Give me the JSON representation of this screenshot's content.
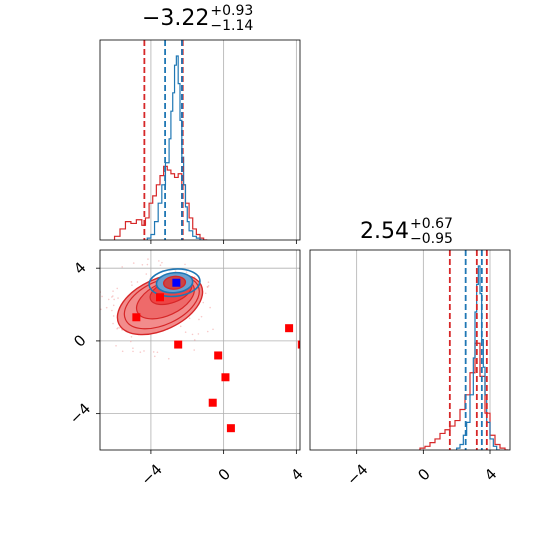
{
  "chart_data": [
    {
      "type": "histogram",
      "panel": "top-left",
      "title_value": "−3.22",
      "title_plus": "+0.93",
      "title_minus": "−1.14",
      "xlim": [
        -6.8,
        4.2
      ],
      "grid": true,
      "red_hist": {
        "color": "#d62728",
        "bins_x": [
          -6.0,
          -5.7,
          -5.4,
          -5.1,
          -4.8,
          -4.5,
          -4.3,
          -4.1,
          -3.9,
          -3.7,
          -3.5,
          -3.3,
          -3.1,
          -2.9,
          -2.7,
          -2.5,
          -2.3,
          -2.1,
          -1.9,
          -1.7,
          -1.5,
          -1.3,
          -1.1
        ],
        "heights": [
          0.02,
          0.06,
          0.1,
          0.09,
          0.11,
          0.08,
          0.12,
          0.2,
          0.24,
          0.3,
          0.35,
          0.4,
          0.38,
          0.36,
          0.34,
          0.36,
          0.3,
          0.2,
          0.12,
          0.06,
          0.03,
          0.01,
          0.0
        ]
      },
      "blue_hist": {
        "color": "#1f77b4",
        "bins_x": [
          -4.2,
          -4.0,
          -3.8,
          -3.6,
          -3.4,
          -3.2,
          -3.0,
          -2.9,
          -2.8,
          -2.7,
          -2.6,
          -2.5,
          -2.4,
          -2.3,
          -2.2,
          -2.1,
          -2.0,
          -1.9,
          -1.7,
          -1.5,
          -1.3
        ],
        "heights": [
          0.01,
          0.03,
          0.1,
          0.2,
          0.3,
          0.42,
          0.55,
          0.7,
          0.8,
          0.95,
          1.0,
          0.85,
          0.65,
          0.45,
          0.3,
          0.18,
          0.1,
          0.05,
          0.02,
          0.01,
          0.0
        ]
      },
      "red_quantiles": [
        -4.36,
        -2.29,
        -2.25
      ],
      "blue_quantiles": [
        -3.22,
        -2.29
      ]
    },
    {
      "type": "scatter",
      "panel": "bottom-left",
      "xlim": [
        -6.8,
        4.2
      ],
      "ylim": [
        -6.0,
        5.0
      ],
      "xticks": [
        "−4",
        "0",
        "4"
      ],
      "yticks": [
        "4",
        "0",
        "−4"
      ],
      "grid": true,
      "red_squares": [
        {
          "x": -4.8,
          "y": 1.3
        },
        {
          "x": -3.5,
          "y": 2.4
        },
        {
          "x": -2.5,
          "y": -0.2
        },
        {
          "x": -0.3,
          "y": -0.8
        },
        {
          "x": 0.1,
          "y": -2.0
        },
        {
          "x": -0.6,
          "y": -3.4
        },
        {
          "x": 0.4,
          "y": -4.8
        },
        {
          "x": 3.6,
          "y": 0.7
        },
        {
          "x": 4.3,
          "y": -0.2
        }
      ],
      "blue_square": {
        "x": -2.6,
        "y": 3.2
      },
      "red_contours_center": {
        "x": -3.8,
        "y": 2.2
      },
      "blue_contours_center": {
        "x": -2.7,
        "y": 3.2
      }
    },
    {
      "type": "histogram",
      "panel": "bottom-right",
      "title_value": "2.54",
      "title_plus": "+0.67",
      "title_minus": "−0.95",
      "xlim": [
        -6.8,
        5.2
      ],
      "xticks": [
        "−4",
        "0",
        "4"
      ],
      "grid": true,
      "red_hist": {
        "color": "#d62728",
        "bins_x": [
          -0.2,
          0.1,
          0.4,
          0.7,
          1.0,
          1.3,
          1.6,
          1.9,
          2.2,
          2.5,
          2.8,
          3.1,
          3.4,
          3.7,
          4.0,
          4.3,
          4.6,
          4.9
        ],
        "heights": [
          0.01,
          0.02,
          0.04,
          0.06,
          0.09,
          0.11,
          0.13,
          0.16,
          0.22,
          0.3,
          0.42,
          0.58,
          0.4,
          0.2,
          0.08,
          0.03,
          0.01,
          0.0
        ]
      },
      "blue_hist": {
        "color": "#1f77b4",
        "bins_x": [
          2.0,
          2.2,
          2.4,
          2.6,
          2.8,
          3.0,
          3.1,
          3.2,
          3.3,
          3.4,
          3.5,
          3.6,
          3.7,
          3.8,
          4.0,
          4.2,
          4.4
        ],
        "heights": [
          0.01,
          0.03,
          0.08,
          0.15,
          0.3,
          0.5,
          0.75,
          0.9,
          1.0,
          0.85,
          0.6,
          0.45,
          0.3,
          0.15,
          0.06,
          0.02,
          0.0
        ]
      },
      "red_quantiles": [
        1.59,
        3.21,
        3.81
      ],
      "blue_quantiles": [
        2.54,
        3.51
      ]
    }
  ],
  "colors": {
    "red": "#d62728",
    "blue": "#1f77b4",
    "red_fill": "#f28c8c",
    "square_red": "#ff0000",
    "square_blue": "#0000ff"
  }
}
